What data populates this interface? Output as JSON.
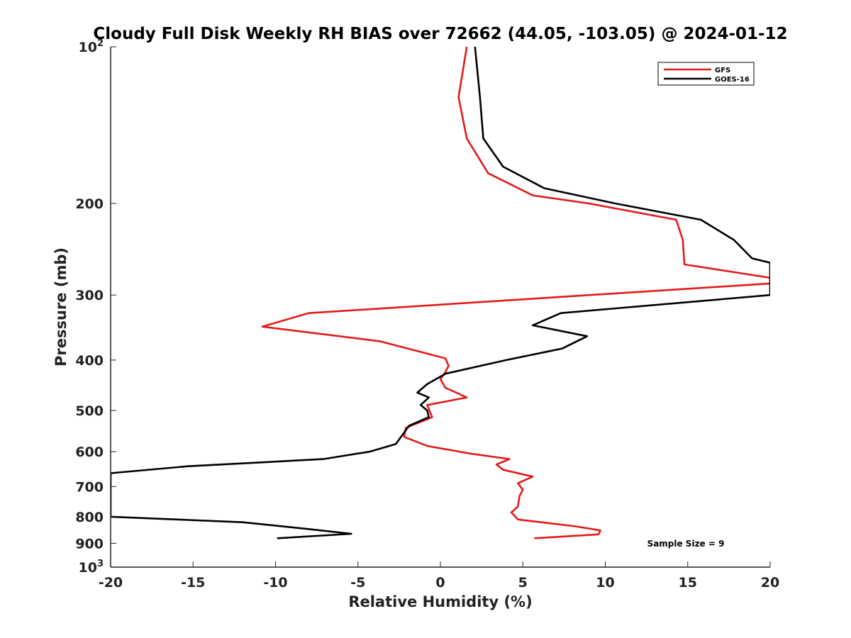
{
  "chart_data": {
    "type": "line",
    "title": "Cloudy Full Disk Weekly RH BIAS over 72662 (44.05, -103.05) @ 2024-01-12",
    "xlabel": "Relative Humidity (%)",
    "ylabel": "Pressure (mb)",
    "xlim": [
      -20,
      20
    ],
    "ylim": [
      100,
      1000
    ],
    "yscale": "log",
    "y_reversed": true,
    "grid": false,
    "legend_position": "top-right",
    "x_ticks": [
      "-20",
      "-15",
      "-10",
      "-5",
      "0",
      "5",
      "10",
      "15",
      "20"
    ],
    "y_ticks": [
      {
        "value": 100,
        "label": "10",
        "exp": "2"
      },
      {
        "value": 200,
        "label": "200"
      },
      {
        "value": 300,
        "label": "300"
      },
      {
        "value": 400,
        "label": "400"
      },
      {
        "value": 500,
        "label": "500"
      },
      {
        "value": 600,
        "label": "600"
      },
      {
        "value": 700,
        "label": "700"
      },
      {
        "value": 800,
        "label": "800"
      },
      {
        "value": 900,
        "label": "900"
      },
      {
        "value": 1000,
        "label": "10",
        "exp": "3"
      }
    ],
    "series": [
      {
        "name": "GFS",
        "color": "#e31a1c",
        "points": [
          [
            1.6,
            100
          ],
          [
            1.1,
            125
          ],
          [
            1.6,
            150
          ],
          [
            2.9,
            175
          ],
          [
            5.6,
            193
          ],
          [
            9,
            200
          ],
          [
            14.3,
            215
          ],
          [
            14.7,
            235
          ],
          [
            14.8,
            262
          ],
          [
            20,
            278
          ],
          [
            20,
            285
          ],
          [
            -8,
            325
          ],
          [
            -10.8,
            345
          ],
          [
            -3.7,
            368
          ],
          [
            0.3,
            397
          ],
          [
            0.5,
            410
          ],
          [
            0.3,
            422
          ],
          [
            0,
            435
          ],
          [
            0.3,
            452
          ],
          [
            1.6,
            472
          ],
          [
            -0.8,
            488
          ],
          [
            -0.5,
            515
          ],
          [
            -2.1,
            540
          ],
          [
            -2.2,
            562
          ],
          [
            -0.8,
            585
          ],
          [
            1.8,
            605
          ],
          [
            4.2,
            620
          ],
          [
            3.4,
            635
          ],
          [
            3.8,
            650
          ],
          [
            5.6,
            670
          ],
          [
            4.7,
            690
          ],
          [
            5,
            710
          ],
          [
            4.8,
            730
          ],
          [
            4.7,
            765
          ],
          [
            4.3,
            785
          ],
          [
            4.7,
            810
          ],
          [
            8.2,
            835
          ],
          [
            9.7,
            850
          ],
          [
            9.6,
            865
          ],
          [
            5.7,
            880
          ]
        ]
      },
      {
        "name": "GOES-16",
        "color": "#000000",
        "points": [
          [
            2.1,
            100
          ],
          [
            2.4,
            125
          ],
          [
            2.6,
            150
          ],
          [
            3.8,
            170
          ],
          [
            6.3,
            187
          ],
          [
            10.6,
            200
          ],
          [
            15.8,
            215
          ],
          [
            17.8,
            235
          ],
          [
            18.9,
            255
          ],
          [
            20,
            260
          ],
          [
            20,
            300
          ],
          [
            7.3,
            325
          ],
          [
            5.6,
            343
          ],
          [
            8.9,
            360
          ],
          [
            7.4,
            380
          ],
          [
            4,
            400
          ],
          [
            0.3,
            425
          ],
          [
            -0.8,
            445
          ],
          [
            -1.4,
            462
          ],
          [
            -0.7,
            472
          ],
          [
            -1.2,
            488
          ],
          [
            -0.8,
            500
          ],
          [
            -0.7,
            515
          ],
          [
            -1.9,
            535
          ],
          [
            -2.7,
            580
          ],
          [
            -4.3,
            600
          ],
          [
            -7.1,
            620
          ],
          [
            -15.3,
            640
          ],
          [
            -20,
            660
          ],
          [
            -20,
            800
          ],
          [
            -12,
            820
          ],
          [
            -8,
            845
          ],
          [
            -5.4,
            863
          ],
          [
            -9.9,
            880
          ]
        ]
      }
    ],
    "annotation": "Sample Size = 9"
  }
}
